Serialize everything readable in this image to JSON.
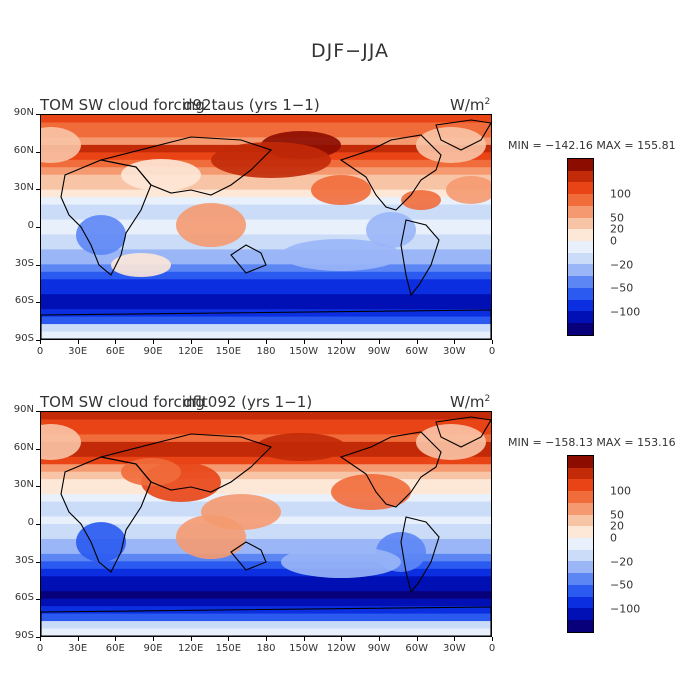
{
  "figure_title": "DJF−JJA",
  "colors": [
    "#08007a",
    "#0010b5",
    "#0b2ee0",
    "#2a5af0",
    "#5d86f5",
    "#9ab6f7",
    "#cbdcf8",
    "#e8f0fb",
    "#fde8d8",
    "#f8c4a6",
    "#f59a70",
    "#f16c3b",
    "#e84416",
    "#c22a08",
    "#8c0c00"
  ],
  "colorbar_labels": [
    "100",
    "50",
    "20",
    "0",
    "−20",
    "−50",
    "−100"
  ],
  "colorbar_label_index": [
    12,
    10,
    9,
    8,
    6,
    4,
    2
  ],
  "lat_labels": [
    "90N",
    "60N",
    "30N",
    "0",
    "30S",
    "60S",
    "90S"
  ],
  "lon_labels": [
    "0",
    "30E",
    "60E",
    "90E",
    "120E",
    "150E",
    "180",
    "150W",
    "120W",
    "90W",
    "60W",
    "30W",
    "0"
  ],
  "panels": [
    {
      "title": "TOM SW cloud forcing",
      "case": "d92taus (yrs 1−1)",
      "units": "W/m",
      "units_sup": "2",
      "stats": "MIN = −142.16  MAX = 155.81"
    },
    {
      "title": "TOM SW cloud forcing",
      "case": "dflt092 (yrs 1−1)",
      "units": "W/m",
      "units_sup": "2",
      "stats": "MIN = −158.13  MAX = 153.16"
    }
  ]
}
